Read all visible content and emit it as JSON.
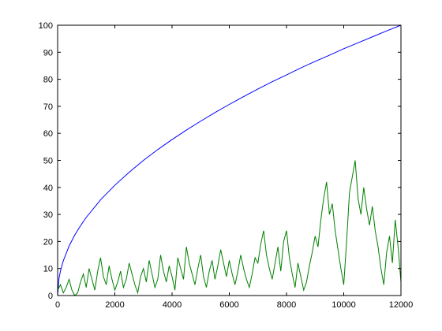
{
  "chart_data": {
    "type": "line",
    "title": "",
    "xlabel": "",
    "ylabel": "",
    "xlim": [
      0,
      12000
    ],
    "ylim": [
      0,
      100
    ],
    "grid": false,
    "x_ticks": [
      0,
      2000,
      4000,
      6000,
      8000,
      10000,
      12000
    ],
    "x_tick_labels": [
      "0",
      "2000",
      "4000",
      "6000",
      "8000",
      "10000",
      "12000"
    ],
    "y_ticks": [
      0,
      10,
      20,
      30,
      40,
      50,
      60,
      70,
      80,
      90,
      100
    ],
    "y_tick_labels": [
      "0",
      "10",
      "20",
      "30",
      "40",
      "50",
      "60",
      "70",
      "80",
      "90",
      "100"
    ],
    "series": [
      {
        "color": "#0000ff",
        "x": [
          0,
          50,
          100,
          200,
          400,
          600,
          800,
          1000,
          1500,
          2000,
          2500,
          3000,
          3500,
          4000,
          4500,
          5000,
          5500,
          6000,
          6500,
          7000,
          7500,
          8000,
          8500,
          9000,
          9500,
          10000,
          10500,
          11000,
          11500,
          12000
        ],
        "y": [
          0,
          6.5,
          9.1,
          12.9,
          18.3,
          22.4,
          25.8,
          28.9,
          35.4,
          40.8,
          45.6,
          50.0,
          54.0,
          57.7,
          61.2,
          64.5,
          67.7,
          70.7,
          73.6,
          76.4,
          79.1,
          81.6,
          84.2,
          86.6,
          88.9,
          91.3,
          93.5,
          95.7,
          97.9,
          100.0
        ]
      },
      {
        "color": "#008000",
        "x": [
          0,
          100,
          200,
          300,
          400,
          500,
          600,
          700,
          800,
          900,
          1000,
          1100,
          1200,
          1300,
          1400,
          1500,
          1600,
          1700,
          1800,
          1900,
          2000,
          2100,
          2200,
          2300,
          2400,
          2500,
          2600,
          2700,
          2800,
          2900,
          3000,
          3100,
          3200,
          3300,
          3400,
          3500,
          3600,
          3700,
          3800,
          3900,
          4000,
          4100,
          4200,
          4300,
          4400,
          4500,
          4600,
          4700,
          4800,
          4900,
          5000,
          5100,
          5200,
          5300,
          5400,
          5500,
          5600,
          5700,
          5800,
          5900,
          6000,
          6100,
          6200,
          6300,
          6400,
          6500,
          6600,
          6700,
          6800,
          6900,
          7000,
          7100,
          7200,
          7300,
          7400,
          7500,
          7600,
          7700,
          7800,
          7900,
          8000,
          8100,
          8200,
          8300,
          8400,
          8500,
          8600,
          8700,
          8800,
          8900,
          9000,
          9100,
          9200,
          9300,
          9400,
          9500,
          9600,
          9700,
          9800,
          9900,
          10000,
          10100,
          10200,
          10300,
          10400,
          10500,
          10600,
          10700,
          10800,
          10900,
          11000,
          11100,
          11200,
          11300,
          11400,
          11500,
          11600,
          11700,
          11800,
          11900,
          12000
        ],
        "y": [
          2,
          4,
          1,
          3,
          6,
          2,
          0,
          1,
          5,
          8,
          3,
          10,
          6,
          2,
          9,
          14,
          7,
          4,
          11,
          6,
          2,
          5,
          9,
          3,
          6,
          12,
          8,
          4,
          1,
          7,
          10,
          5,
          13,
          8,
          3,
          6,
          15,
          9,
          5,
          11,
          7,
          2,
          14,
          10,
          6,
          18,
          12,
          8,
          4,
          10,
          15,
          7,
          3,
          9,
          13,
          6,
          11,
          17,
          12,
          7,
          13,
          8,
          4,
          9,
          15,
          10,
          6,
          3,
          8,
          14,
          12,
          19,
          24,
          15,
          10,
          6,
          12,
          18,
          9,
          20,
          24,
          14,
          8,
          3,
          12,
          7,
          2,
          5,
          11,
          16,
          22,
          18,
          28,
          36,
          42,
          30,
          34,
          24,
          17,
          10,
          4,
          20,
          38,
          44,
          50,
          36,
          30,
          40,
          32,
          26,
          33,
          24,
          18,
          10,
          4,
          16,
          22,
          12,
          28,
          18,
          5
        ]
      }
    ]
  }
}
